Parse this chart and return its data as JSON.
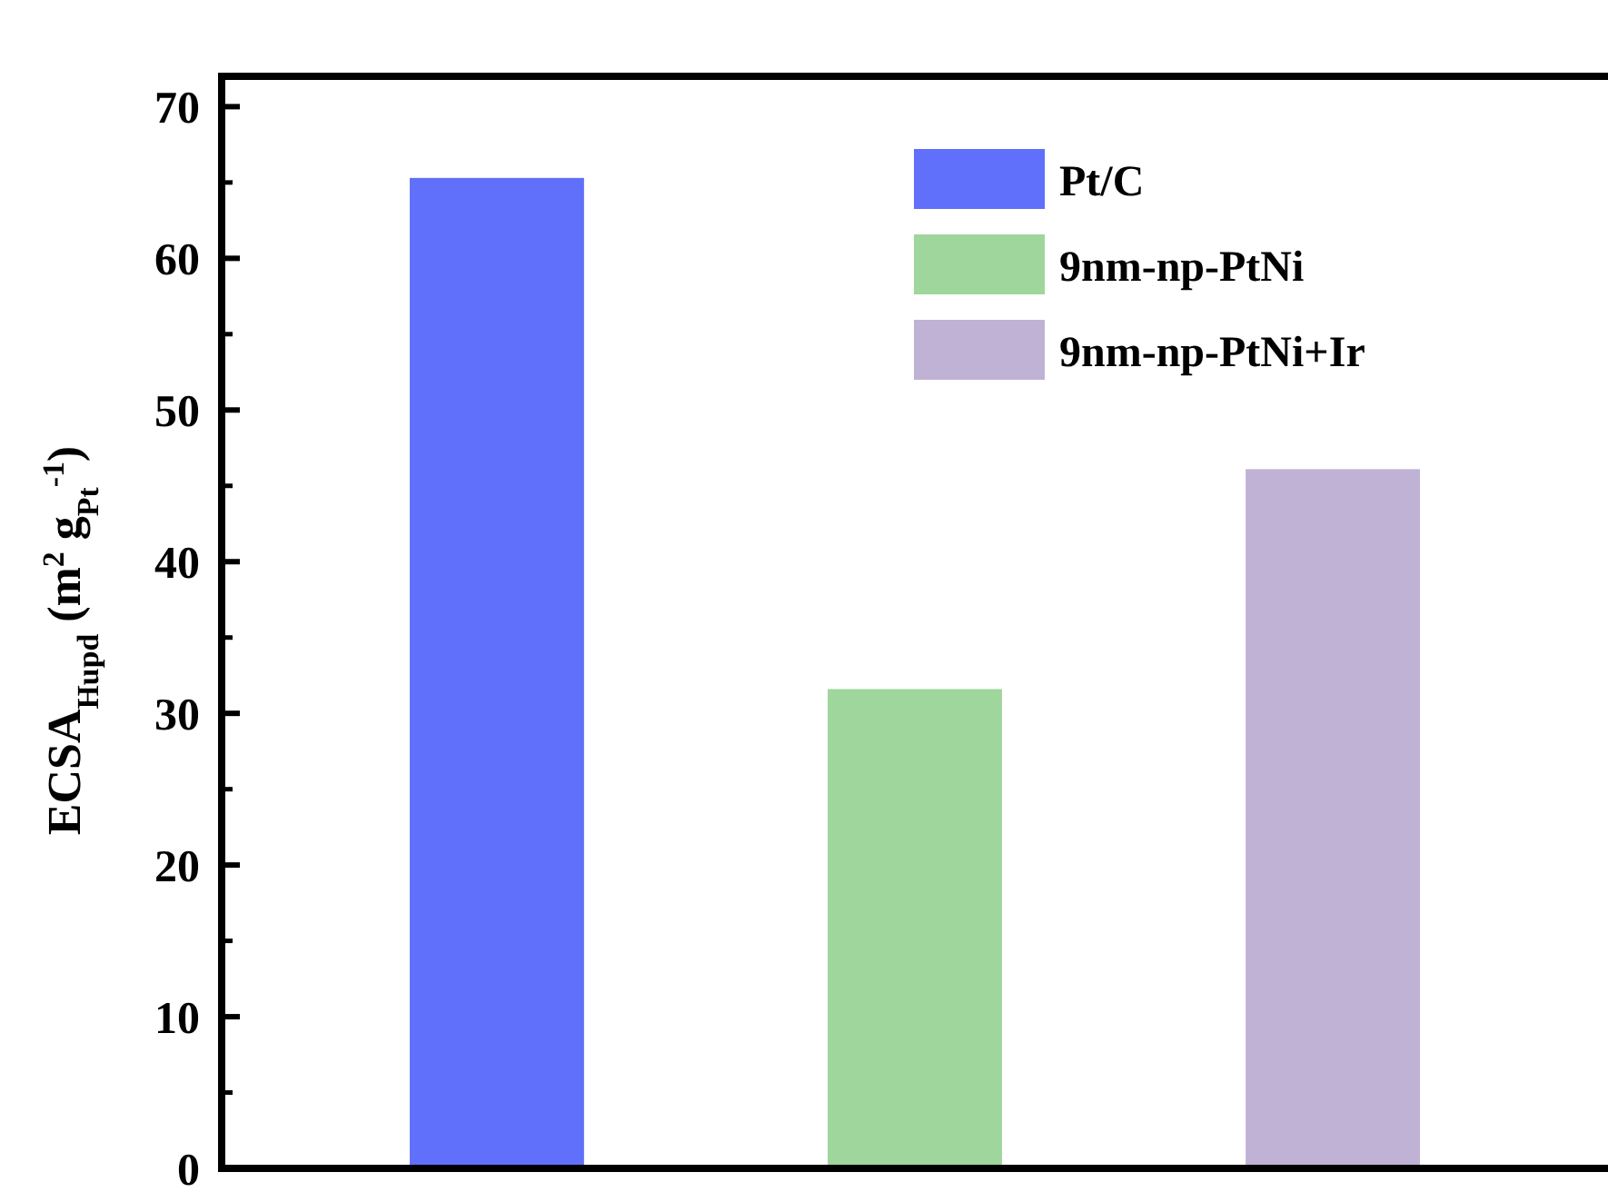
{
  "chart_data": {
    "type": "bar",
    "ylabel": "ECSA$_{Hupd}$ (m$^{2}$ g$_{Pt}$$^{-1}$)",
    "categories": [
      null
    ],
    "series": [
      {
        "name": "Pt/C",
        "color": "#6070fa",
        "values": [
          65.3
        ]
      },
      {
        "name": "9nm-np-PtNi",
        "color": "#9fd69b",
        "values": [
          31.6
        ]
      },
      {
        "name": "9nm-np-PtNi+Ir",
        "color": "#c0b2d4",
        "values": [
          46.1
        ]
      }
    ],
    "ylim": [
      0,
      72
    ],
    "yticks": [
      0,
      10,
      20,
      30,
      40,
      50,
      60,
      70
    ],
    "grid": false,
    "legend": "top right"
  }
}
